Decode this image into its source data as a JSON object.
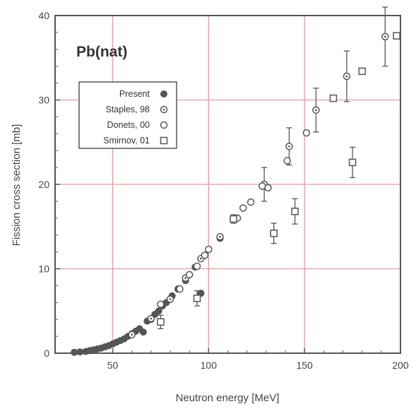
{
  "chart_data": {
    "type": "scatter",
    "title": "",
    "inset_label": "Pb(nat)",
    "xlabel": "Neutron energy [MeV]",
    "ylabel": "Fission cross section [mb]",
    "xlim": [
      20,
      200
    ],
    "ylim": [
      0,
      40
    ],
    "xticks": [
      50,
      100,
      150,
      200
    ],
    "yticks": [
      0,
      10,
      20,
      30,
      40
    ],
    "grid": true,
    "legend_position": "upper-left",
    "colors": {
      "axis": "#555555",
      "grid": "#e89a9a",
      "marker": "#555555",
      "present_fill": "#555555"
    },
    "series": [
      {
        "name": "Present",
        "marker": "filled-circle",
        "points": [
          {
            "x": 30,
            "y": 0.1
          },
          {
            "x": 33,
            "y": 0.15
          },
          {
            "x": 36,
            "y": 0.2
          },
          {
            "x": 38,
            "y": 0.3
          },
          {
            "x": 40,
            "y": 0.4
          },
          {
            "x": 42,
            "y": 0.5
          },
          {
            "x": 44,
            "y": 0.6
          },
          {
            "x": 46,
            "y": 0.75
          },
          {
            "x": 48,
            "y": 0.9
          },
          {
            "x": 50,
            "y": 1.1
          },
          {
            "x": 52,
            "y": 1.3
          },
          {
            "x": 54,
            "y": 1.5
          },
          {
            "x": 56,
            "y": 1.7
          },
          {
            "x": 58,
            "y": 2.0
          },
          {
            "x": 60,
            "y": 2.3
          },
          {
            "x": 62,
            "y": 2.6
          },
          {
            "x": 64,
            "y": 2.9
          },
          {
            "x": 66,
            "y": 2.5
          },
          {
            "x": 68,
            "y": 3.8
          },
          {
            "x": 70,
            "y": 4.0
          },
          {
            "x": 72,
            "y": 4.6
          },
          {
            "x": 74,
            "y": 5.0
          },
          {
            "x": 76,
            "y": 5.6
          },
          {
            "x": 78,
            "y": 6.0
          },
          {
            "x": 81,
            "y": 6.8
          },
          {
            "x": 84,
            "y": 7.6
          },
          {
            "x": 88,
            "y": 8.6
          },
          {
            "x": 93,
            "y": 10.2
          },
          {
            "x": 96,
            "y": 7.1
          },
          {
            "x": 106,
            "y": 13.6
          }
        ]
      },
      {
        "name": "Staples, 98",
        "marker": "dotted-circle",
        "points": [
          {
            "x": 60,
            "y": 2.2
          },
          {
            "x": 70,
            "y": 4.1
          },
          {
            "x": 80,
            "y": 6.4
          },
          {
            "x": 88,
            "y": 8.9
          },
          {
            "x": 96,
            "y": 11.2
          },
          {
            "x": 106,
            "y": 13.8
          },
          {
            "x": 129,
            "y": 20.0,
            "err": 2.0
          },
          {
            "x": 142,
            "y": 24.5,
            "err": 2.2
          },
          {
            "x": 156,
            "y": 28.8,
            "err": 2.6
          },
          {
            "x": 172,
            "y": 32.8,
            "err": 3.0
          },
          {
            "x": 192,
            "y": 37.5,
            "err": 3.5
          }
        ]
      },
      {
        "name": "Donets, 00",
        "marker": "open-circle",
        "points": [
          {
            "x": 75,
            "y": 5.8
          },
          {
            "x": 85,
            "y": 7.6
          },
          {
            "x": 90,
            "y": 9.3
          },
          {
            "x": 94,
            "y": 10.3
          },
          {
            "x": 98,
            "y": 11.6
          },
          {
            "x": 100,
            "y": 12.3
          },
          {
            "x": 115,
            "y": 16.0
          },
          {
            "x": 118,
            "y": 17.2
          },
          {
            "x": 122,
            "y": 17.9
          },
          {
            "x": 128,
            "y": 19.8
          },
          {
            "x": 131,
            "y": 19.6
          },
          {
            "x": 141,
            "y": 22.8
          },
          {
            "x": 151,
            "y": 26.1
          }
        ]
      },
      {
        "name": "Smirnov, 01",
        "marker": "open-square",
        "points": [
          {
            "x": 75,
            "y": 3.7,
            "err": 0.8
          },
          {
            "x": 94,
            "y": 6.5,
            "err": 0.9
          },
          {
            "x": 113,
            "y": 15.9,
            "err": 0.5
          },
          {
            "x": 134,
            "y": 14.2,
            "err": 1.2
          },
          {
            "x": 145,
            "y": 16.8,
            "err": 1.5
          },
          {
            "x": 165,
            "y": 30.2
          },
          {
            "x": 175,
            "y": 22.6,
            "err": 1.8
          },
          {
            "x": 180,
            "y": 33.4
          },
          {
            "x": 198,
            "y": 37.6
          }
        ]
      }
    ]
  }
}
